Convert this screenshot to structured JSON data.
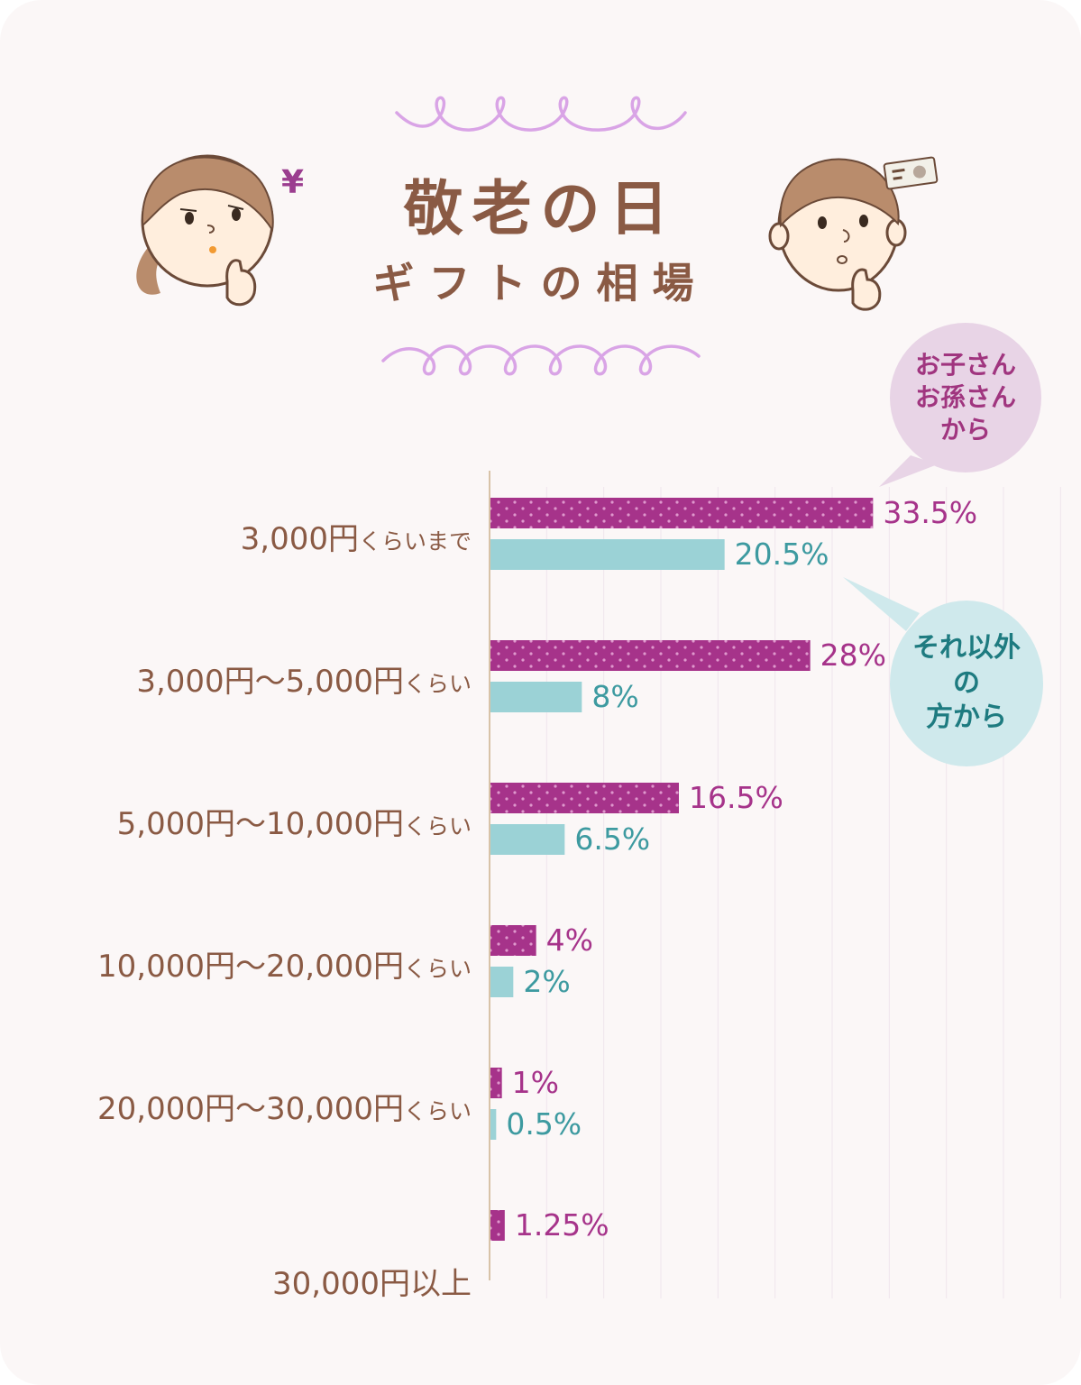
{
  "title": {
    "line1": "敬老の日",
    "line2": "ギフトの相場"
  },
  "icons": {
    "yen": "¥",
    "girl": "thinking-girl-icon",
    "boy": "thinking-boy-icon",
    "money": "banknote-icon"
  },
  "colors": {
    "series1": "#a6338a",
    "series2": "#9bd2d6",
    "text": "#8a5a44",
    "swirl": "#d9a4e6"
  },
  "legend": {
    "series1": [
      "お子さん",
      "お孫さん",
      "から"
    ],
    "series2": [
      "それ以外",
      "の",
      "方から"
    ]
  },
  "chart_data": {
    "type": "bar",
    "orientation": "horizontal",
    "categories": [
      {
        "main": "3,000円",
        "suffix": "くらいまで"
      },
      {
        "main": "3,000円〜5,000円",
        "suffix": "くらい"
      },
      {
        "main": "5,000円〜10,000円",
        "suffix": "くらい"
      },
      {
        "main": "10,000円〜20,000円",
        "suffix": "くらい"
      },
      {
        "main": "20,000円〜30,000円",
        "suffix": "くらい"
      },
      {
        "main": "30,000円以上",
        "suffix": ""
      }
    ],
    "series": [
      {
        "name": "お子さん お孫さん から",
        "values": [
          33.5,
          28,
          16.5,
          4,
          1,
          1.25
        ],
        "labels": [
          "33.5%",
          "28%",
          "16.5%",
          "4%",
          "1%",
          "1.25%"
        ]
      },
      {
        "name": "それ以外 の 方から",
        "values": [
          20.5,
          8,
          6.5,
          2,
          0.5,
          null
        ],
        "labels": [
          "20.5%",
          "8%",
          "6.5%",
          "2%",
          "0.5%",
          ""
        ]
      }
    ],
    "xlim": [
      0,
      70
    ],
    "grid": true
  }
}
